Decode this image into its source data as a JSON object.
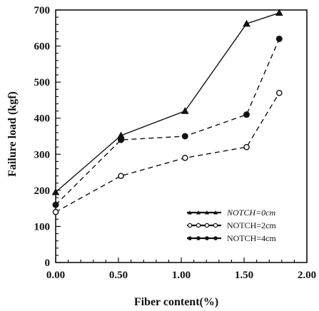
{
  "chart_data": {
    "type": "line",
    "xlabel": "Fiber content(%)",
    "ylabel": "Failure load (kgf)",
    "xlim": [
      0,
      2.0
    ],
    "ylim": [
      0,
      700
    ],
    "xticks": [
      "0.00",
      "0.50",
      "1.00",
      "1.50",
      "2.00"
    ],
    "yticks": [
      "0",
      "100",
      "200",
      "300",
      "400",
      "500",
      "600",
      "700"
    ],
    "grid": false,
    "legend_position": "bottom-right",
    "series": [
      {
        "name": "NOTCH=0cm",
        "marker": "triangle",
        "line": "solid",
        "x": [
          0.0,
          0.52,
          1.03,
          1.52,
          1.78
        ],
        "y": [
          195,
          352,
          420,
          662,
          692
        ]
      },
      {
        "name": "NOTCH=2cm",
        "marker": "open-circle",
        "line": "dashed",
        "x": [
          0.0,
          0.52,
          1.03,
          1.52,
          1.78
        ],
        "y": [
          140,
          240,
          290,
          320,
          470
        ]
      },
      {
        "name": "NOTCH=4cm",
        "marker": "filled-circle",
        "line": "dashed",
        "x": [
          0.0,
          0.52,
          1.03,
          1.52,
          1.78
        ],
        "y": [
          160,
          340,
          350,
          410,
          620
        ]
      }
    ]
  }
}
